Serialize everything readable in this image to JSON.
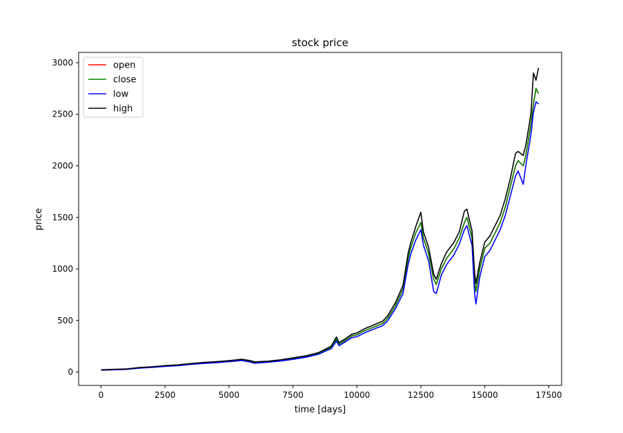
{
  "chart_data": {
    "type": "line",
    "title": "stock price",
    "xlabel": "time [days]",
    "ylabel": "price",
    "xlim": [
      -875,
      18000
    ],
    "ylim": [
      -130,
      3100
    ],
    "xticks": [
      0,
      2500,
      5000,
      7500,
      10000,
      12500,
      15000,
      17500
    ],
    "xtick_labels": [
      "0",
      "2500",
      "5000",
      "7500",
      "10000",
      "12500",
      "15000",
      "17500"
    ],
    "yticks": [
      0,
      500,
      1000,
      1500,
      2000,
      2500,
      3000
    ],
    "ytick_labels": [
      "0",
      "500",
      "1000",
      "1500",
      "2000",
      "2500",
      "3000"
    ],
    "grid": false,
    "legend_position": "top-left",
    "x": [
      0,
      500,
      1000,
      1500,
      2000,
      2500,
      3000,
      3500,
      4000,
      4500,
      5000,
      5500,
      5800,
      6000,
      6500,
      7000,
      7500,
      8000,
      8500,
      9000,
      9200,
      9300,
      9500,
      9800,
      10000,
      10300,
      10500,
      10800,
      11000,
      11200,
      11500,
      11800,
      12000,
      12100,
      12300,
      12500,
      12600,
      12800,
      13000,
      13100,
      13300,
      13500,
      13800,
      14000,
      14200,
      14300,
      14400,
      14500,
      14600,
      14650,
      14800,
      15000,
      15200,
      15400,
      15600,
      15800,
      16000,
      16200,
      16300,
      16500,
      16600,
      16800,
      16900,
      17000,
      17100
    ],
    "series": [
      {
        "name": "open",
        "color": "#ff0000",
        "values": [
          20,
          24,
          28,
          40,
          48,
          58,
          65,
          78,
          88,
          95,
          105,
          118,
          105,
          92,
          100,
          112,
          130,
          150,
          180,
          240,
          320,
          270,
          300,
          350,
          360,
          400,
          420,
          450,
          470,
          520,
          640,
          800,
          1100,
          1200,
          1350,
          1450,
          1300,
          1150,
          900,
          850,
          1000,
          1100,
          1200,
          1300,
          1450,
          1500,
          1400,
          1300,
          900,
          780,
          1000,
          1200,
          1250,
          1350,
          1450,
          1600,
          1800,
          2000,
          2050,
          2000,
          2100,
          2400,
          2600,
          2750,
          2700
        ]
      },
      {
        "name": "close",
        "color": "#008000",
        "values": [
          20,
          24,
          28,
          40,
          48,
          58,
          65,
          78,
          88,
          95,
          105,
          118,
          105,
          92,
          100,
          112,
          130,
          150,
          180,
          240,
          320,
          270,
          300,
          350,
          360,
          400,
          420,
          450,
          470,
          520,
          640,
          800,
          1100,
          1200,
          1350,
          1450,
          1300,
          1150,
          900,
          850,
          1000,
          1100,
          1200,
          1300,
          1450,
          1500,
          1400,
          1300,
          900,
          780,
          1000,
          1200,
          1250,
          1350,
          1450,
          1600,
          1800,
          2000,
          2050,
          2000,
          2100,
          2400,
          2600,
          2750,
          2700
        ]
      },
      {
        "name": "low",
        "color": "#0000ff",
        "values": [
          18,
          22,
          26,
          37,
          45,
          54,
          61,
          74,
          83,
          90,
          100,
          112,
          98,
          85,
          95,
          106,
          123,
          143,
          172,
          228,
          300,
          255,
          285,
          333,
          342,
          380,
          400,
          430,
          448,
          495,
          610,
          760,
          1040,
          1140,
          1280,
          1380,
          1230,
          1080,
          780,
          760,
          940,
          1040,
          1140,
          1240,
          1380,
          1420,
          1320,
          1230,
          760,
          660,
          920,
          1120,
          1180,
          1280,
          1380,
          1520,
          1710,
          1900,
          1950,
          1820,
          2000,
          2300,
          2520,
          2620,
          2600
        ]
      },
      {
        "name": "high",
        "color": "#000000",
        "values": [
          22,
          26,
          30,
          43,
          51,
          62,
          69,
          82,
          93,
          100,
          110,
          124,
          112,
          99,
          105,
          118,
          137,
          157,
          188,
          252,
          340,
          285,
          315,
          367,
          378,
          420,
          440,
          472,
          492,
          545,
          670,
          840,
          1150,
          1250,
          1410,
          1550,
          1360,
          1210,
          950,
          900,
          1050,
          1160,
          1260,
          1360,
          1560,
          1580,
          1470,
          1370,
          960,
          860,
          1060,
          1260,
          1320,
          1420,
          1520,
          1680,
          1880,
          2120,
          2140,
          2100,
          2200,
          2500,
          2900,
          2830,
          2950
        ]
      }
    ]
  }
}
